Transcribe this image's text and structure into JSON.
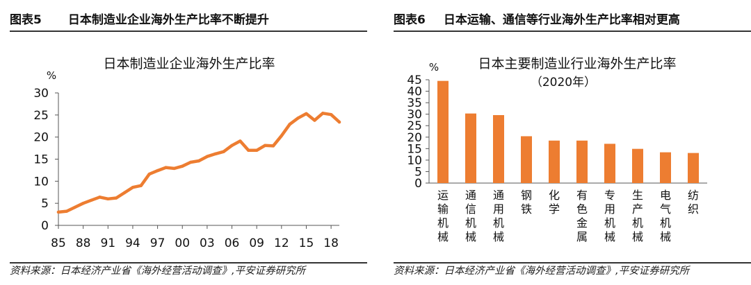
{
  "left": {
    "figure_number": "图表5",
    "figure_title": "日本制造业企业海外生产比率不断提升",
    "source": "资料来源：日本经济产业省《海外经营活动调查》,平安证券研究所"
  },
  "right": {
    "figure_number": "图表6",
    "figure_title": "日本运输、通信等行业海外生产比率相对更高",
    "source": "资料来源：日本经济产业省《海外经营活动调查》,平安证券研究所"
  },
  "colors": {
    "series": "#ED7D31",
    "axis": "#555555",
    "text": "#111111"
  },
  "chart_data": [
    {
      "type": "line",
      "title": "日本制造业企业海外生产比率",
      "ylabel": "%",
      "xlabel": "",
      "x": [
        1985,
        1986,
        1987,
        1988,
        1989,
        1990,
        1991,
        1992,
        1993,
        1994,
        1995,
        1996,
        1997,
        1998,
        1999,
        2000,
        2001,
        2002,
        2003,
        2004,
        2005,
        2006,
        2007,
        2008,
        2009,
        2010,
        2011,
        2012,
        2013,
        2014,
        2015,
        2016,
        2017,
        2018,
        2019
      ],
      "y": [
        3.0,
        3.2,
        4.1,
        5.0,
        5.7,
        6.4,
        6.0,
        6.2,
        7.4,
        8.6,
        9.0,
        11.6,
        12.4,
        13.1,
        12.9,
        13.4,
        14.3,
        14.6,
        15.6,
        16.2,
        16.7,
        18.1,
        19.1,
        17.0,
        17.0,
        18.1,
        18.0,
        20.3,
        22.9,
        24.3,
        25.3,
        23.8,
        25.4,
        25.1,
        23.4
      ],
      "xticks": [
        1985,
        1988,
        1991,
        1994,
        1997,
        2000,
        2003,
        2006,
        2009,
        2012,
        2015,
        2018
      ],
      "xtick_labels": [
        "85",
        "88",
        "91",
        "94",
        "97",
        "00",
        "03",
        "06",
        "09",
        "12",
        "15",
        "18"
      ],
      "ylim": [
        0,
        30
      ],
      "yticks": [
        0,
        5,
        10,
        15,
        20,
        25,
        30
      ],
      "grid": false
    },
    {
      "type": "bar",
      "title": "日本主要制造业行业海外生产比率",
      "subtitle": "（2020年）",
      "ylabel": "%",
      "xlabel": "",
      "categories": [
        "运输机械",
        "通信机械",
        "通用机械",
        "钢铁",
        "化学",
        "有色金属",
        "专用机械",
        "生产机械",
        "电气机械",
        "纺织"
      ],
      "values": [
        44.5,
        30.3,
        29.6,
        20.4,
        18.5,
        18.5,
        17.1,
        14.9,
        13.4,
        13.1
      ],
      "ylim": [
        0,
        45
      ],
      "yticks": [
        0,
        5,
        10,
        15,
        20,
        25,
        30,
        35,
        40,
        45
      ],
      "grid": false
    }
  ]
}
